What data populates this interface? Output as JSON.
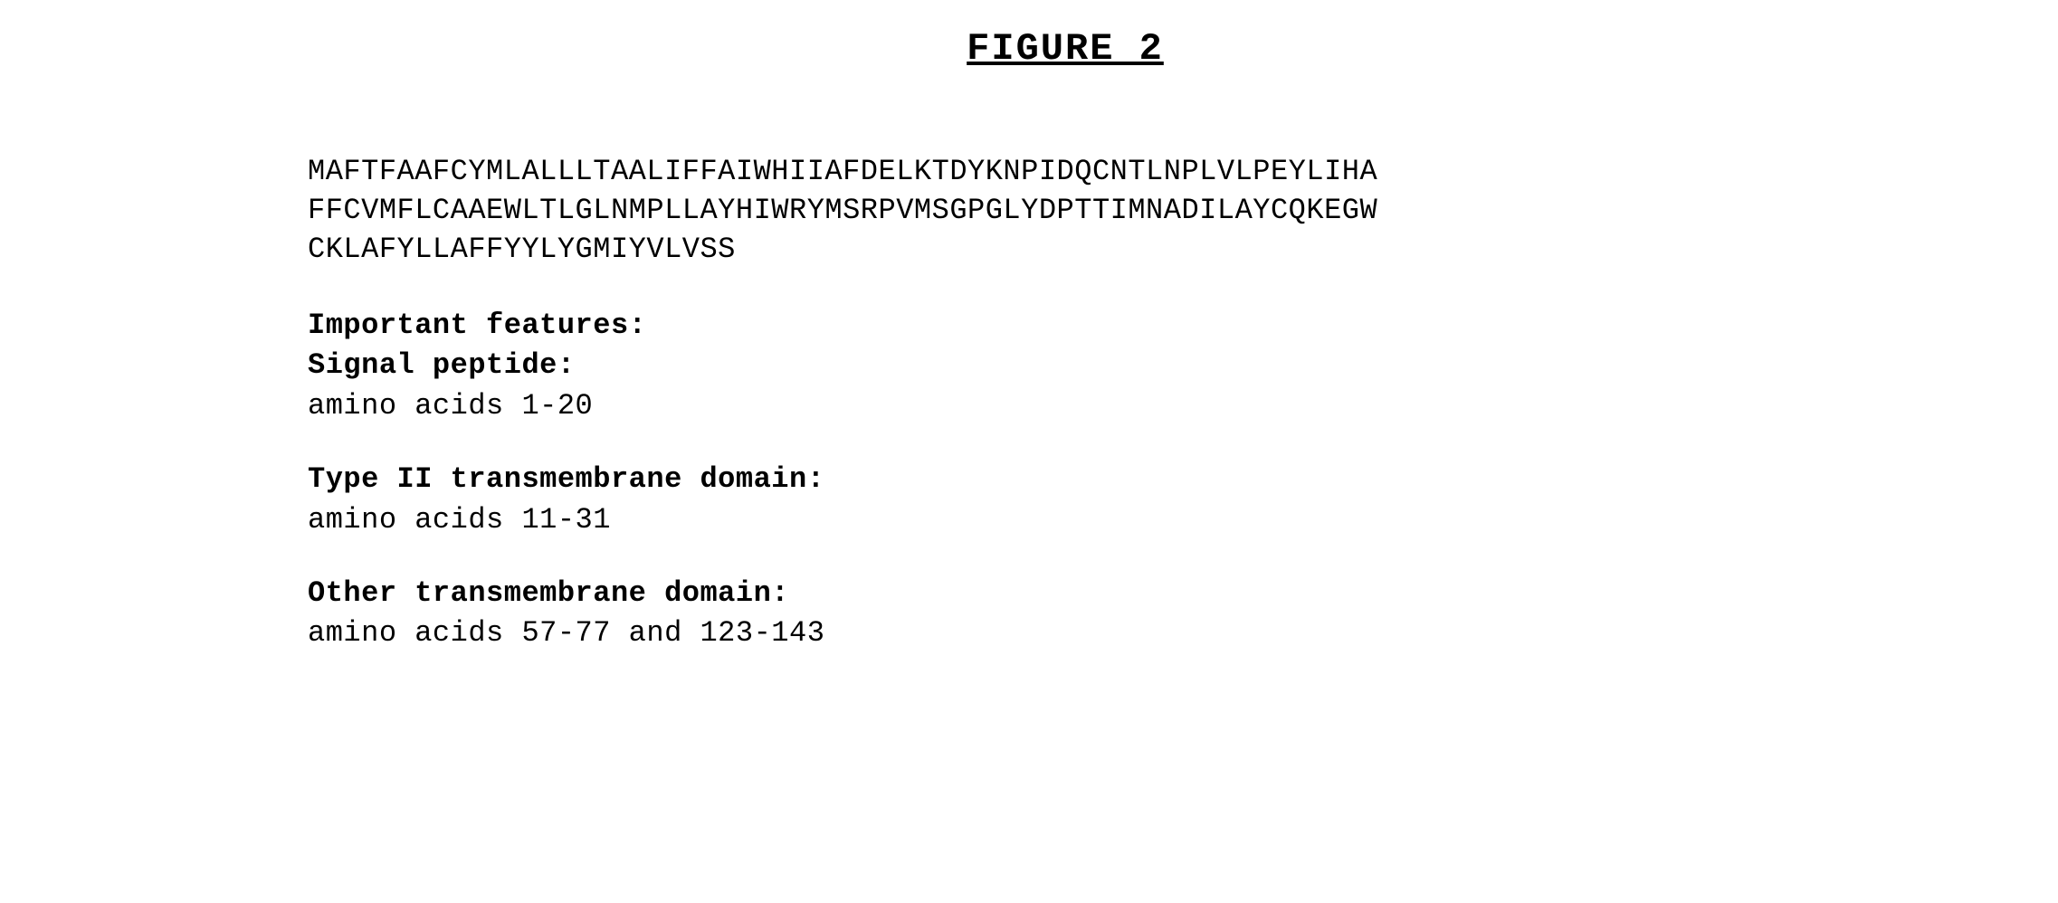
{
  "figure": {
    "title": "FIGURE 2",
    "title_fontsize": 42,
    "title_fontweight": "bold",
    "title_decoration": "underline"
  },
  "sequence": {
    "line1": "MAFTFAAFCYMLALLLTAALIFFAIWHIIAFDELKTDYKNPIDQCNTLNPLVLPEYLIHA",
    "line2": "FFCVMFLCAAEWLTLGLNMPLLAYHIWRYMSRPVMSGPGLYDPTTIMNADILAYCQKEGW",
    "line3": "CKLAFYLLAFFYYLYGMIYVLVSS"
  },
  "features": {
    "header": "Important features:",
    "signal_peptide": {
      "label": "Signal peptide:",
      "value": "amino acids 1-20"
    },
    "type2_transmembrane": {
      "label": "Type II transmembrane domain:",
      "value": "amino acids 11-31"
    },
    "other_transmembrane": {
      "label": "Other transmembrane domain:",
      "value": "amino acids 57-77 and 123-143"
    }
  },
  "styling": {
    "background_color": "#ffffff",
    "text_color": "#000000",
    "font_family": "Courier New",
    "body_fontsize": 32,
    "line_height": 1.35
  }
}
